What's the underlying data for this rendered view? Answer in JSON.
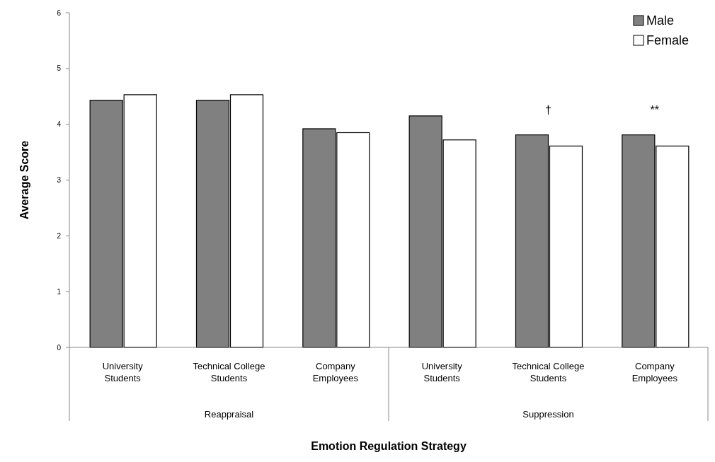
{
  "chart_data": {
    "type": "bar",
    "xlabel": "Emotion Regulation Strategy",
    "ylabel": "Average Score",
    "categories": [
      "University Students",
      "Technical College Students",
      "Company Employees",
      "University Students",
      "Technical College Students",
      "Company Employees"
    ],
    "series": [
      {
        "name": "Male",
        "color": "#808080",
        "values": [
          4.43,
          4.43,
          3.92,
          4.15,
          3.81,
          3.81
        ]
      },
      {
        "name": "Female",
        "color": "#ffffff",
        "values": [
          4.53,
          4.53,
          3.85,
          3.72,
          3.61,
          3.61
        ]
      }
    ],
    "ylim": [
      0,
      6
    ],
    "yticks": [
      0,
      1,
      2,
      3,
      4,
      5,
      6
    ],
    "grid": false,
    "legend": "top right",
    "annotations": [
      "Reappraisal",
      "Suppression",
      "†",
      "**"
    ]
  }
}
